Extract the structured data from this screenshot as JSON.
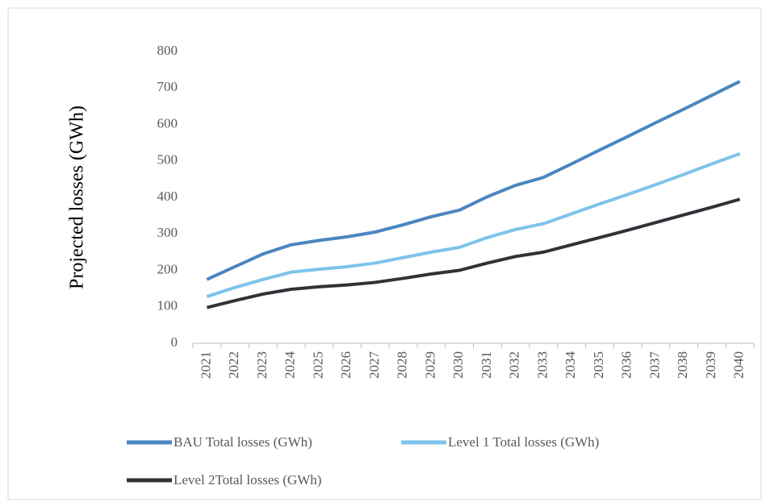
{
  "chart_data": {
    "type": "line",
    "y_label": "Projected losses (GWh)",
    "categories": [
      "2021",
      "2022",
      "2023",
      "2024",
      "2025",
      "2026",
      "2027",
      "2028",
      "2029",
      "2030",
      "2031",
      "2032",
      "2033",
      "2034",
      "2035",
      "2036",
      "2037",
      "2038",
      "2039",
      "2040"
    ],
    "series": [
      {
        "name": "BAU Total losses (GWh)",
        "color": "#4a86c0",
        "values": [
          175,
          210,
          245,
          270,
          282,
          292,
          305,
          325,
          347,
          365,
          402,
          433,
          455,
          492,
          530,
          567,
          605,
          642,
          680,
          718
        ]
      },
      {
        "name": "Level 1 Total losses (GWh)",
        "color": "#7ec3ea",
        "values": [
          128,
          153,
          175,
          195,
          203,
          210,
          220,
          235,
          250,
          263,
          290,
          312,
          328,
          355,
          382,
          408,
          435,
          463,
          492,
          520
        ]
      },
      {
        "name": "Level 2Total losses (GWh)",
        "color": "#2f3338",
        "values": [
          98,
          117,
          135,
          148,
          155,
          160,
          167,
          178,
          190,
          200,
          220,
          238,
          250,
          270,
          290,
          310,
          331,
          352,
          373,
          395
        ]
      }
    ],
    "ylim": [
      0,
      800
    ],
    "yticks": [
      0,
      100,
      200,
      300,
      400,
      500,
      600,
      700,
      800
    ],
    "grid": false,
    "legend": "bottom"
  }
}
